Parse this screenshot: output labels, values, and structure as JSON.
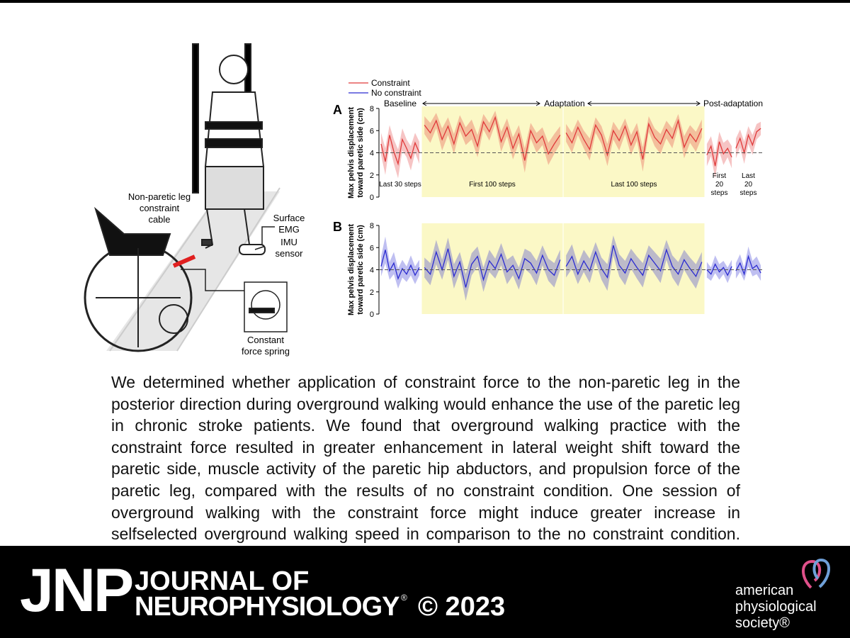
{
  "chart_data": [
    {
      "type": "line",
      "label": "A",
      "ylabel": [
        "Max pelvis displacement",
        "toward paretic side (cm)"
      ],
      "ylim": [
        0,
        8
      ],
      "yticks": [
        0,
        2,
        4,
        6,
        8
      ],
      "reference": 4,
      "phases": [
        "Baseline",
        "Adaptation",
        "Post-adaptation"
      ],
      "series": {
        "name": "Constraint",
        "color": "#e03a3a"
      },
      "segments": [
        {
          "label": [
            "Last 30 steps"
          ],
          "highlight": false,
          "values": [
            4.8,
            3.2,
            5.6,
            4.1,
            3.0,
            5.2,
            4.4,
            3.5,
            4.9,
            4.0
          ],
          "errors": [
            1.0,
            1.2,
            0.9,
            1.1,
            1.3,
            1.0,
            0.8,
            1.1,
            0.9,
            1.0
          ]
        },
        {
          "label": [
            "First 100 steps"
          ],
          "highlight": true,
          "values": [
            6.5,
            5.8,
            6.9,
            5.2,
            6.4,
            4.8,
            6.7,
            5.5,
            6.1,
            4.6,
            6.8,
            5.9,
            7.2,
            5.0,
            6.3,
            4.4,
            5.7,
            3.3,
            6.0,
            4.9,
            5.5,
            3.9,
            4.8,
            5.6
          ],
          "errors": [
            0.8,
            0.9,
            0.7,
            1.0,
            0.8,
            0.9,
            0.7,
            0.8,
            0.9,
            1.0,
            0.7,
            0.8,
            0.6,
            0.9,
            0.8,
            1.0,
            0.8,
            1.1,
            0.7,
            0.9,
            0.8,
            1.0,
            0.9,
            0.8
          ]
        },
        {
          "label": [
            "Last 100 steps"
          ],
          "highlight": true,
          "values": [
            5.8,
            4.9,
            6.3,
            5.2,
            4.3,
            6.5,
            5.6,
            3.8,
            6.0,
            5.1,
            6.4,
            4.7,
            5.9,
            3.4,
            6.6,
            5.4,
            4.8,
            6.1,
            5.3,
            6.9,
            4.5,
            5.7,
            5.0,
            6.2
          ],
          "errors": [
            0.8,
            0.9,
            0.7,
            0.8,
            1.0,
            0.7,
            0.8,
            1.0,
            0.8,
            0.9,
            0.7,
            0.9,
            0.8,
            1.1,
            0.7,
            0.8,
            0.9,
            0.8,
            0.9,
            0.6,
            1.0,
            0.8,
            0.9,
            0.8
          ]
        },
        {
          "label": [
            "First",
            "20",
            "steps"
          ],
          "highlight": false,
          "values": [
            3.8,
            4.6,
            2.8,
            5.0,
            3.9,
            4.4,
            3.6
          ],
          "errors": [
            1.0,
            0.9,
            1.1,
            0.9,
            1.0,
            0.8,
            1.0
          ]
        },
        {
          "label": [
            "Last",
            "20",
            "steps"
          ],
          "highlight": false,
          "values": [
            4.4,
            5.3,
            4.0,
            5.6,
            4.7,
            5.9,
            6.2
          ],
          "errors": [
            0.9,
            0.8,
            1.0,
            0.8,
            0.9,
            0.7,
            0.6
          ]
        }
      ]
    },
    {
      "type": "line",
      "label": "B",
      "ylabel": [
        "Max pelvis displacement",
        "toward paretic side (cm)"
      ],
      "ylim": [
        0,
        8
      ],
      "yticks": [
        0,
        2,
        4,
        6,
        8
      ],
      "reference": 4,
      "series": {
        "name": "No constraint",
        "color": "#2b2bd0"
      },
      "segments": [
        {
          "highlight": false,
          "values": [
            4.3,
            5.8,
            3.9,
            4.6,
            3.2,
            4.1,
            3.6,
            4.4,
            3.5,
            4.2
          ],
          "errors": [
            0.9,
            1.2,
            0.8,
            1.0,
            0.9,
            0.8,
            0.7,
            0.9,
            0.8,
            0.7
          ]
        },
        {
          "highlight": true,
          "values": [
            4.2,
            3.6,
            5.6,
            4.0,
            5.9,
            3.4,
            4.7,
            2.4,
            4.5,
            5.2,
            3.1,
            4.8,
            4.1,
            5.4,
            3.8,
            4.4,
            3.2,
            5.0,
            4.6,
            3.7,
            5.3,
            4.0,
            3.5,
            4.9
          ],
          "errors": [
            0.9,
            1.0,
            1.1,
            0.9,
            1.0,
            1.1,
            0.9,
            1.2,
            1.0,
            0.9,
            1.1,
            1.0,
            0.9,
            1.0,
            1.1,
            0.9,
            1.0,
            0.9,
            1.0,
            1.1,
            0.9,
            1.0,
            1.1,
            0.9
          ]
        },
        {
          "highlight": true,
          "values": [
            4.3,
            5.2,
            3.6,
            4.8,
            3.9,
            5.6,
            4.1,
            3.3,
            6.2,
            4.4,
            3.7,
            5.0,
            4.2,
            3.5,
            5.3,
            4.6,
            3.9,
            5.8,
            4.3,
            3.6,
            4.9,
            4.1,
            3.4,
            4.7
          ],
          "errors": [
            1.0,
            1.1,
            0.9,
            1.0,
            1.1,
            0.9,
            1.0,
            1.2,
            0.9,
            1.0,
            1.1,
            0.9,
            1.0,
            1.1,
            0.9,
            1.0,
            1.1,
            0.9,
            1.0,
            1.1,
            0.9,
            1.0,
            1.1,
            0.9
          ]
        },
        {
          "highlight": false,
          "values": [
            4.0,
            3.6,
            4.5,
            3.8,
            4.2,
            3.5,
            4.3
          ],
          "errors": [
            0.7,
            0.6,
            0.8,
            0.7,
            0.6,
            0.7,
            0.6
          ]
        },
        {
          "highlight": false,
          "values": [
            3.9,
            4.6,
            3.6,
            5.2,
            4.1,
            4.4,
            3.7
          ],
          "errors": [
            0.7,
            0.8,
            0.6,
            0.9,
            0.7,
            0.8,
            0.7
          ]
        }
      ]
    }
  ],
  "figure": {
    "annotations": [
      [
        "Non-paretic leg",
        "constraint",
        "cable"
      ],
      [
        "Surface",
        "EMG"
      ],
      [
        "IMU",
        "sensor"
      ],
      [
        "Constant",
        "force spring"
      ]
    ]
  },
  "abstract": "We determined whether application of constraint force to the non-paretic leg in the posterior direction during overground walking would enhance the use of the paretic leg in chronic stroke patients. We found that overground walking practice with the constraint force resulted in greater enhancement in lateral weight shift toward the paretic side, muscle activity of the paretic hip abductors, and propulsion force of the paretic leg, compared with the results of no constraint condition. One session of overground walking with the constraint force might induce greater increase in selfselected overground walking speed in comparison to the no constraint condition.",
  "footer": {
    "journal_short": "JNP",
    "journal_name": [
      "JOURNAL OF",
      "NEUROPHYSIOLOGY"
    ],
    "registered": "®",
    "copyright": "© 2023",
    "publisher": [
      "american",
      "physiological",
      "society®"
    ]
  }
}
